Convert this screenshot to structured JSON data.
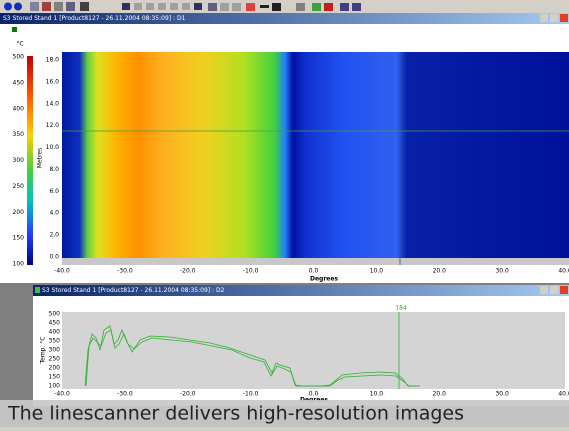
{
  "window1": {
    "title": "S3 Stored Stand 1 [Product8127 - 26.11.2004 08:35:09] : D1",
    "colorbar_unit": "°C",
    "colorbar_ticks": [
      "500",
      "450",
      "400",
      "350",
      "300",
      "250",
      "200",
      "150",
      "100"
    ],
    "y_label": "Metres",
    "y_ticks": [
      "18.0",
      "16.0",
      "14.0",
      "12.0",
      "10.0",
      "8.0",
      "6.0",
      "4.0",
      "2.0",
      "0.0"
    ],
    "x_ticks": [
      "-40.0",
      "-30.0",
      "-20.0",
      "-10.0",
      "0.0",
      "10.0",
      "20.0",
      "30.0",
      "40.0"
    ],
    "x_label": "Degrees"
  },
  "window2": {
    "title": "S3 Stored Stand 1 [Product8127 - 26.11.2004 08:35:09] : D2",
    "marker_label": "184",
    "y_label": "Temp. °C",
    "y_ticks": [
      "500",
      "450",
      "400",
      "350",
      "300",
      "250",
      "200",
      "150",
      "100"
    ],
    "x_ticks": [
      "-40.0",
      "-30.0",
      "-20.0",
      "-10.0",
      "0.0",
      "10.0",
      "20.0",
      "30.0",
      "40.0"
    ],
    "x_label": "Degrees"
  },
  "caption": "The linescanner delivers high-resolution images"
}
